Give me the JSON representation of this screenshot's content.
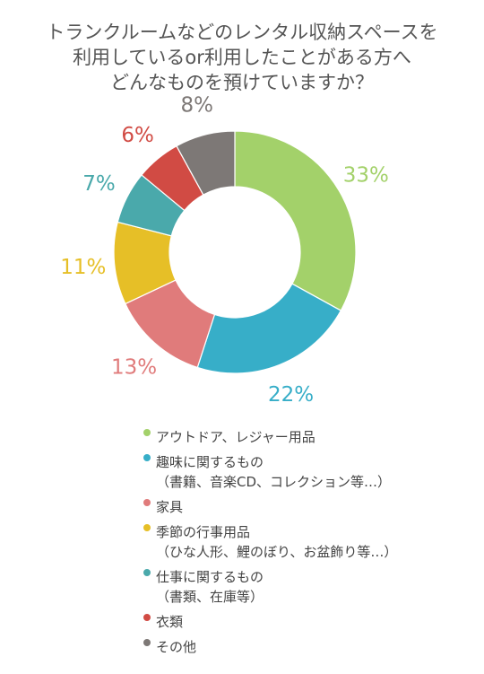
{
  "title": {
    "line1": "トランクルームなどのレンタル収納スペースを",
    "line2": "利用しているor利用したことがある方へ",
    "line3": "どんなものを預けていますか？"
  },
  "chart_data": {
    "type": "pie",
    "style": "donut",
    "categories": [
      "アウトドア、レジャー用品",
      "趣味に関するもの（書籍、音楽CD、コレクション等…）",
      "家具",
      "季節の行事用品（ひな人形、鯉のぼり、お盆飾り等…）",
      "仕事に関するもの（書類、在庫等）",
      "衣類",
      "その他"
    ],
    "values": [
      33,
      22,
      13,
      11,
      7,
      6,
      8
    ],
    "labels": [
      "33%",
      "22%",
      "13%",
      "11%",
      "7%",
      "6%",
      "8%"
    ],
    "colors": [
      "#a3d16a",
      "#37aec8",
      "#e07b7b",
      "#e6bf27",
      "#4aa9ab",
      "#d14b44",
      "#7d7876"
    ],
    "title": "トランクルームなどのレンタル収納スペースを利用しているor利用したことがある方へ どんなものを預けていますか？",
    "legend_position": "bottom"
  },
  "legend": [
    {
      "line1": "アウトドア、レジャー用品",
      "line2": ""
    },
    {
      "line1": "趣味に関するもの",
      "line2": "（書籍、音楽CD、コレクション等…）"
    },
    {
      "line1": "家具",
      "line2": ""
    },
    {
      "line1": "季節の行事用品",
      "line2": "（ひな人形、鯉のぼり、お盆飾り等…）"
    },
    {
      "line1": "仕事に関するもの",
      "line2": "（書類、在庫等）"
    },
    {
      "line1": "衣類",
      "line2": ""
    },
    {
      "line1": "その他",
      "line2": ""
    }
  ]
}
